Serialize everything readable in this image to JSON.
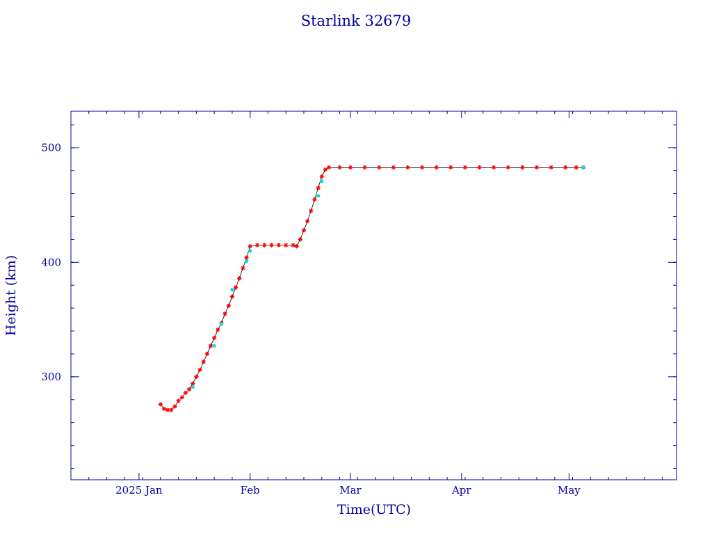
{
  "chart_data": {
    "type": "scatter",
    "title": "Starlink 32679",
    "xlabel": "Time(UTC)",
    "ylabel": "Height (km)",
    "xlim": [
      "2024-12-13",
      "2025-05-31"
    ],
    "ylim": [
      210,
      532
    ],
    "x_ticks": [
      {
        "date": "2025-01-01",
        "label": "2025 Jan"
      },
      {
        "date": "2025-02-01",
        "label": "Feb"
      },
      {
        "date": "2025-03-01",
        "label": "Mar"
      },
      {
        "date": "2025-04-01",
        "label": "Apr"
      },
      {
        "date": "2025-05-01",
        "label": "May"
      }
    ],
    "y_ticks": [
      300,
      400,
      500
    ],
    "grid": false,
    "colors": {
      "axis": "#0000a0",
      "line": "#000000",
      "primary": "#ff0000",
      "secondary": "#00e0e0"
    },
    "series": [
      {
        "marker": "asterisk",
        "color": "#ff0000",
        "points": [
          [
            "2025-01-07",
            276
          ],
          [
            "2025-01-08",
            272
          ],
          [
            "2025-01-09",
            271
          ],
          [
            "2025-01-10",
            271
          ],
          [
            "2025-01-11",
            274
          ],
          [
            "2025-01-12",
            279
          ],
          [
            "2025-01-13",
            282
          ],
          [
            "2025-01-14",
            286
          ],
          [
            "2025-01-15",
            289
          ],
          [
            "2025-01-16",
            294
          ],
          [
            "2025-01-17",
            300
          ],
          [
            "2025-01-18",
            306
          ],
          [
            "2025-01-19",
            313
          ],
          [
            "2025-01-20",
            320
          ],
          [
            "2025-01-21",
            327
          ],
          [
            "2025-01-22",
            334
          ],
          [
            "2025-01-23",
            341
          ],
          [
            "2025-01-24",
            347
          ],
          [
            "2025-01-25",
            355
          ],
          [
            "2025-01-26",
            362
          ],
          [
            "2025-01-27",
            370
          ],
          [
            "2025-01-28",
            378
          ],
          [
            "2025-01-29",
            386
          ],
          [
            "2025-01-30",
            395
          ],
          [
            "2025-01-31",
            404
          ],
          [
            "2025-02-01",
            414
          ],
          [
            "2025-02-03",
            415
          ],
          [
            "2025-02-05",
            415
          ],
          [
            "2025-02-07",
            415
          ],
          [
            "2025-02-09",
            415
          ],
          [
            "2025-02-11",
            415
          ],
          [
            "2025-02-13",
            415
          ],
          [
            "2025-02-14",
            414
          ],
          [
            "2025-02-15",
            420
          ],
          [
            "2025-02-16",
            428
          ],
          [
            "2025-02-17",
            436
          ],
          [
            "2025-02-18",
            445
          ],
          [
            "2025-02-19",
            455
          ],
          [
            "2025-02-20",
            465
          ],
          [
            "2025-02-21",
            475
          ],
          [
            "2025-02-22",
            481
          ],
          [
            "2025-02-23",
            483
          ],
          [
            "2025-02-26",
            483
          ],
          [
            "2025-03-01",
            483
          ],
          [
            "2025-03-05",
            483
          ],
          [
            "2025-03-09",
            483
          ],
          [
            "2025-03-13",
            483
          ],
          [
            "2025-03-17",
            483
          ],
          [
            "2025-03-21",
            483
          ],
          [
            "2025-03-25",
            483
          ],
          [
            "2025-03-29",
            483
          ],
          [
            "2025-04-02",
            483
          ],
          [
            "2025-04-06",
            483
          ],
          [
            "2025-04-10",
            483
          ],
          [
            "2025-04-14",
            483
          ],
          [
            "2025-04-18",
            483
          ],
          [
            "2025-04-22",
            483
          ],
          [
            "2025-04-26",
            483
          ],
          [
            "2025-04-30",
            483
          ],
          [
            "2025-05-03",
            483
          ],
          [
            "2025-05-05",
            483
          ]
        ]
      },
      {
        "marker": "dot",
        "color": "#00e0e0",
        "points": [
          [
            "2025-01-16",
            291
          ],
          [
            "2025-01-22",
            327
          ],
          [
            "2025-01-24",
            346
          ],
          [
            "2025-01-27",
            376
          ],
          [
            "2025-01-31",
            401
          ],
          [
            "2025-02-01",
            410
          ],
          [
            "2025-02-20",
            458
          ],
          [
            "2025-02-21",
            471
          ],
          [
            "2025-05-05",
            483
          ]
        ]
      }
    ]
  }
}
